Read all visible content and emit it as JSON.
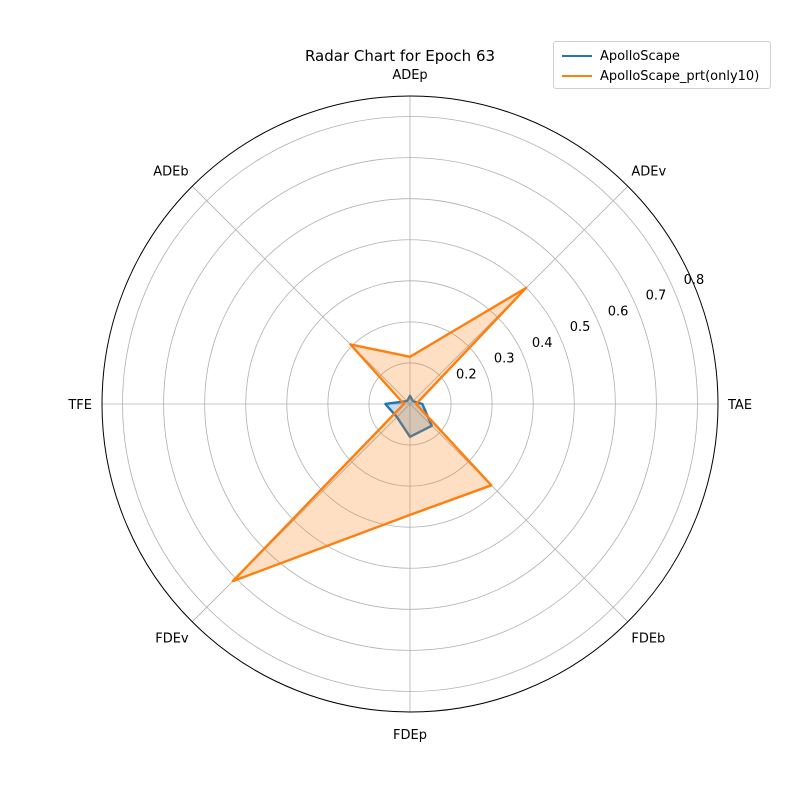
{
  "chart_data": {
    "type": "radar",
    "title": "Radar Chart for Epoch 63",
    "axes": [
      "ADEp",
      "ADEv",
      "TAE",
      "FDEb",
      "FDEp",
      "FDEv",
      "TFE",
      "ADEb"
    ],
    "rlim": [
      0.1,
      0.85
    ],
    "rticks": [
      0.2,
      0.3,
      0.4,
      0.5,
      0.6,
      0.7,
      0.8
    ],
    "grid": true,
    "legend_position": "top-right",
    "series": [
      {
        "name": "ApolloScape",
        "color": "#1f77b4",
        "values": [
          0.12,
          0.11,
          0.13,
          0.175,
          0.18,
          0.145,
          0.16,
          0.11
        ]
      },
      {
        "name": "ApolloScape_prt(only10)",
        "color": "#ff7f0e",
        "values": [
          0.215,
          0.5,
          0.115,
          0.38,
          0.37,
          0.71,
          0.115,
          0.305
        ]
      }
    ]
  }
}
